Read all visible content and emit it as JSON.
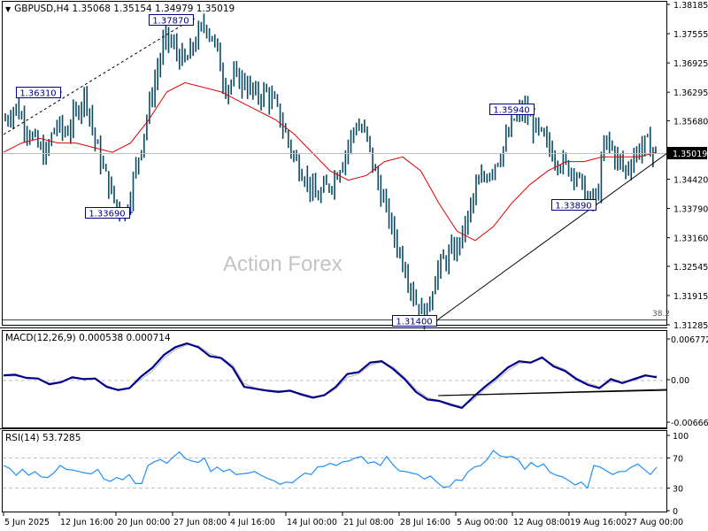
{
  "chart_data": [
    {
      "type": "line",
      "panel": "price",
      "title": "GBPUSD,H4",
      "symbol": "GBPUSD",
      "timeframe": "H4",
      "ohlc_current": {
        "open": 1.35068,
        "high": 1.35154,
        "low": 1.34979,
        "close": 1.35019
      },
      "header_text": "GBPUSD,H4  1.35068 1.35154 1.34979 1.35019",
      "ylim": [
        1.31285,
        1.38185
      ],
      "y_ticks": [
        "1.38185",
        "1.37555",
        "1.36925",
        "1.36295",
        "1.35680",
        "1.35019",
        "1.34420",
        "1.33790",
        "1.33160",
        "1.32545",
        "1.31915",
        "1.31285"
      ],
      "current_price_label": "1.35019",
      "x_ticks": [
        "5 Jun 2025",
        "12 Jun 16:00",
        "20 Jun 00:00",
        "27 Jun 08:00",
        "4 Jul 16:00",
        "14 Jul 00:00",
        "21 Jul 08:00",
        "28 Jul 16:00",
        "5 Aug 00:00",
        "12 Aug 08:00",
        "19 Aug 16:00",
        "27 Aug 00:00"
      ],
      "series": [
        {
          "name": "Close (approx, bar chart)",
          "values": [
            1.357,
            1.36,
            1.356,
            1.352,
            1.349,
            1.356,
            1.354,
            1.358,
            1.363,
            1.352,
            1.345,
            1.339,
            1.337,
            1.346,
            1.356,
            1.366,
            1.375,
            1.372,
            1.369,
            1.374,
            1.378,
            1.373,
            1.364,
            1.366,
            1.365,
            1.362,
            1.363,
            1.36,
            1.354,
            1.348,
            1.345,
            1.34,
            1.342,
            1.345,
            1.35,
            1.356,
            1.354,
            1.345,
            1.338,
            1.331,
            1.325,
            1.318,
            1.314,
            1.324,
            1.327,
            1.329,
            1.334,
            1.342,
            1.345,
            1.348,
            1.352,
            1.358,
            1.359,
            1.355,
            1.352,
            1.349,
            1.347,
            1.346,
            1.34,
            1.339,
            1.353,
            1.349,
            1.346,
            1.35,
            1.352,
            1.35
          ]
        },
        {
          "name": "SMA (red)",
          "values": [
            1.35,
            1.352,
            1.353,
            1.352,
            1.352,
            1.351,
            1.35,
            1.352,
            1.357,
            1.363,
            1.365,
            1.364,
            1.363,
            1.361,
            1.359,
            1.357,
            1.354,
            1.35,
            1.346,
            1.344,
            1.345,
            1.348,
            1.349,
            1.346,
            1.339,
            1.333,
            1.331,
            1.334,
            1.339,
            1.343,
            1.346,
            1.348,
            1.348,
            1.349,
            1.349,
            1.349,
            1.35
          ]
        }
      ],
      "annotations": [
        {
          "label": "1.37870",
          "type": "swing-high"
        },
        {
          "label": "1.36310",
          "type": "swing-high"
        },
        {
          "label": "1.33690",
          "type": "swing-low"
        },
        {
          "label": "1.35940",
          "type": "swing-high"
        },
        {
          "label": "1.33890",
          "type": "swing-low"
        },
        {
          "label": "1.31400",
          "type": "swing-low"
        },
        {
          "label": "38.2",
          "type": "fibonacci-level"
        }
      ],
      "trendlines": [
        "dashed channel from ~1.353 (5 Jun) to 1.37870 (27 Jun)",
        "support from 1.31400 (1 Aug) through 1.33890 to current"
      ],
      "watermark": "Action Forex"
    },
    {
      "type": "line",
      "panel": "macd",
      "title": "MACD(12,26,9) 0.000538 0.000714",
      "params": "12,26,9",
      "macd_value": 0.000538,
      "signal_value": 0.000714,
      "ylim": [
        -0.006667,
        0.006772
      ],
      "y_ticks": [
        "0.006772",
        "0.00",
        "-0.006667"
      ],
      "series": [
        {
          "name": "MACD",
          "values": [
            0.0008,
            0.0009,
            0.0004,
            0.0003,
            -0.0006,
            -0.0003,
            0.0005,
            0.0002,
            0.0003,
            -0.001,
            -0.0015,
            -0.0012,
            0.0006,
            0.002,
            0.004,
            0.0052,
            0.0058,
            0.0052,
            0.0038,
            0.0035,
            0.002,
            -0.001,
            -0.0013,
            -0.0016,
            -0.0018,
            -0.0016,
            -0.0022,
            -0.0027,
            -0.0023,
            -0.001,
            0.001,
            0.0013,
            0.0028,
            0.003,
            0.0018,
            0.0002,
            -0.0018,
            -0.003,
            -0.0032,
            -0.0038,
            -0.0043,
            -0.0026,
            -0.001,
            0.0004,
            0.002,
            0.003,
            0.0028,
            0.0036,
            0.0022,
            0.0015,
            0.0002,
            -0.0007,
            -0.0012,
            0.0002,
            -0.0004,
            0.0002,
            0.0008,
            0.0005
          ]
        },
        {
          "name": "Signal",
          "values": [
            0.0007,
            0.0007,
            0.0005,
            0.0003,
            -0.0004,
            -0.0002,
            0.0003,
            0.0003,
            0.0002,
            -0.0008,
            -0.0015,
            -0.0012,
            0.0002,
            0.0015,
            0.0035,
            0.0048,
            0.0056,
            0.0054,
            0.0042,
            0.0036,
            0.0024,
            -0.0005,
            -0.0012,
            -0.0015,
            -0.0016,
            -0.0016,
            -0.002,
            -0.0025,
            -0.0024,
            -0.0013,
            0.0005,
            0.001,
            0.0024,
            0.0029,
            0.0021,
            0.0005,
            -0.0014,
            -0.0027,
            -0.0031,
            -0.0036,
            -0.0041,
            -0.003,
            -0.0014,
            0.0,
            0.0015,
            0.0027,
            0.0028,
            0.0034,
            0.0025,
            0.0017,
            0.0004,
            -0.0004,
            -0.001,
            -0.0002,
            -0.0003,
            0.0,
            0.0006,
            0.0007
          ]
        }
      ],
      "trendlines": [
        "rising support from MACD low near 1 Aug to current"
      ]
    },
    {
      "type": "line",
      "panel": "rsi",
      "title": "RSI(14) 53.7285",
      "period": 14,
      "value": 53.7285,
      "ylim": [
        0,
        100
      ],
      "y_ticks": [
        "100",
        "70",
        "30",
        "0"
      ],
      "levels": [
        70,
        30
      ],
      "series": [
        {
          "name": "RSI",
          "values": [
            60,
            56,
            47,
            55,
            47,
            52,
            45,
            44,
            50,
            60,
            55,
            54,
            52,
            50,
            49,
            55,
            42,
            39,
            44,
            41,
            48,
            36,
            36,
            60,
            65,
            68,
            63,
            71,
            78,
            69,
            66,
            64,
            70,
            52,
            58,
            52,
            55,
            48,
            49,
            50,
            52,
            47,
            43,
            40,
            35,
            38,
            37,
            44,
            50,
            48,
            58,
            59,
            63,
            60,
            65,
            66,
            70,
            72,
            63,
            65,
            60,
            72,
            61,
            53,
            52,
            50,
            48,
            42,
            46,
            38,
            31,
            32,
            41,
            40,
            52,
            58,
            60,
            68,
            80,
            73,
            71,
            72,
            67,
            55,
            64,
            58,
            62,
            51,
            47,
            45,
            40,
            34,
            38,
            30,
            60,
            58,
            53,
            48,
            52,
            52,
            58,
            62,
            55,
            48,
            58
          ]
        }
      ]
    }
  ],
  "price_panel": {
    "header": "GBPUSD,H4  1.35068 1.35154 1.34979 1.35019",
    "menu_triangle": "▼",
    "watermark": "Action Forex",
    "fib_label": "38.2",
    "labels": {
      "h1": "1.37870",
      "h2": "1.36310",
      "l1": "1.33690",
      "h3": "1.35940",
      "l2": "1.33890",
      "l3": "1.31400"
    },
    "y_ticks": [
      "1.38185",
      "1.37555",
      "1.36925",
      "1.36295",
      "1.35680",
      "1.34420",
      "1.33790",
      "1.33160",
      "1.32545",
      "1.31915",
      "1.31285"
    ],
    "current_price": "1.35019"
  },
  "macd_panel": {
    "header": "MACD(12,26,9) 0.000538 0.000714",
    "y_ticks": [
      "0.006772",
      "0.00",
      "-0.006667"
    ]
  },
  "rsi_panel": {
    "header": "RSI(14) 53.7285",
    "y_ticks": [
      "100",
      "70",
      "30",
      "0"
    ]
  },
  "x_axis": {
    "ticks": [
      "5 Jun 2025",
      "12 Jun 16:00",
      "20 Jun 00:00",
      "27 Jun 08:00",
      "4 Jul 16:00",
      "14 Jul 00:00",
      "21 Jul 08:00",
      "28 Jul 16:00",
      "5 Aug 00:00",
      "12 Aug 08:00",
      "19 Aug 16:00",
      "27 Aug 00:00"
    ]
  },
  "colors": {
    "bars": "#0b4a63",
    "sma": "#e00000",
    "macd": "#00008b",
    "signal": "#b4b4b4",
    "rsi": "#1e90ff",
    "label_border": "#000080",
    "label_text": "#000080",
    "grid_dash": "#c0c0c0"
  }
}
